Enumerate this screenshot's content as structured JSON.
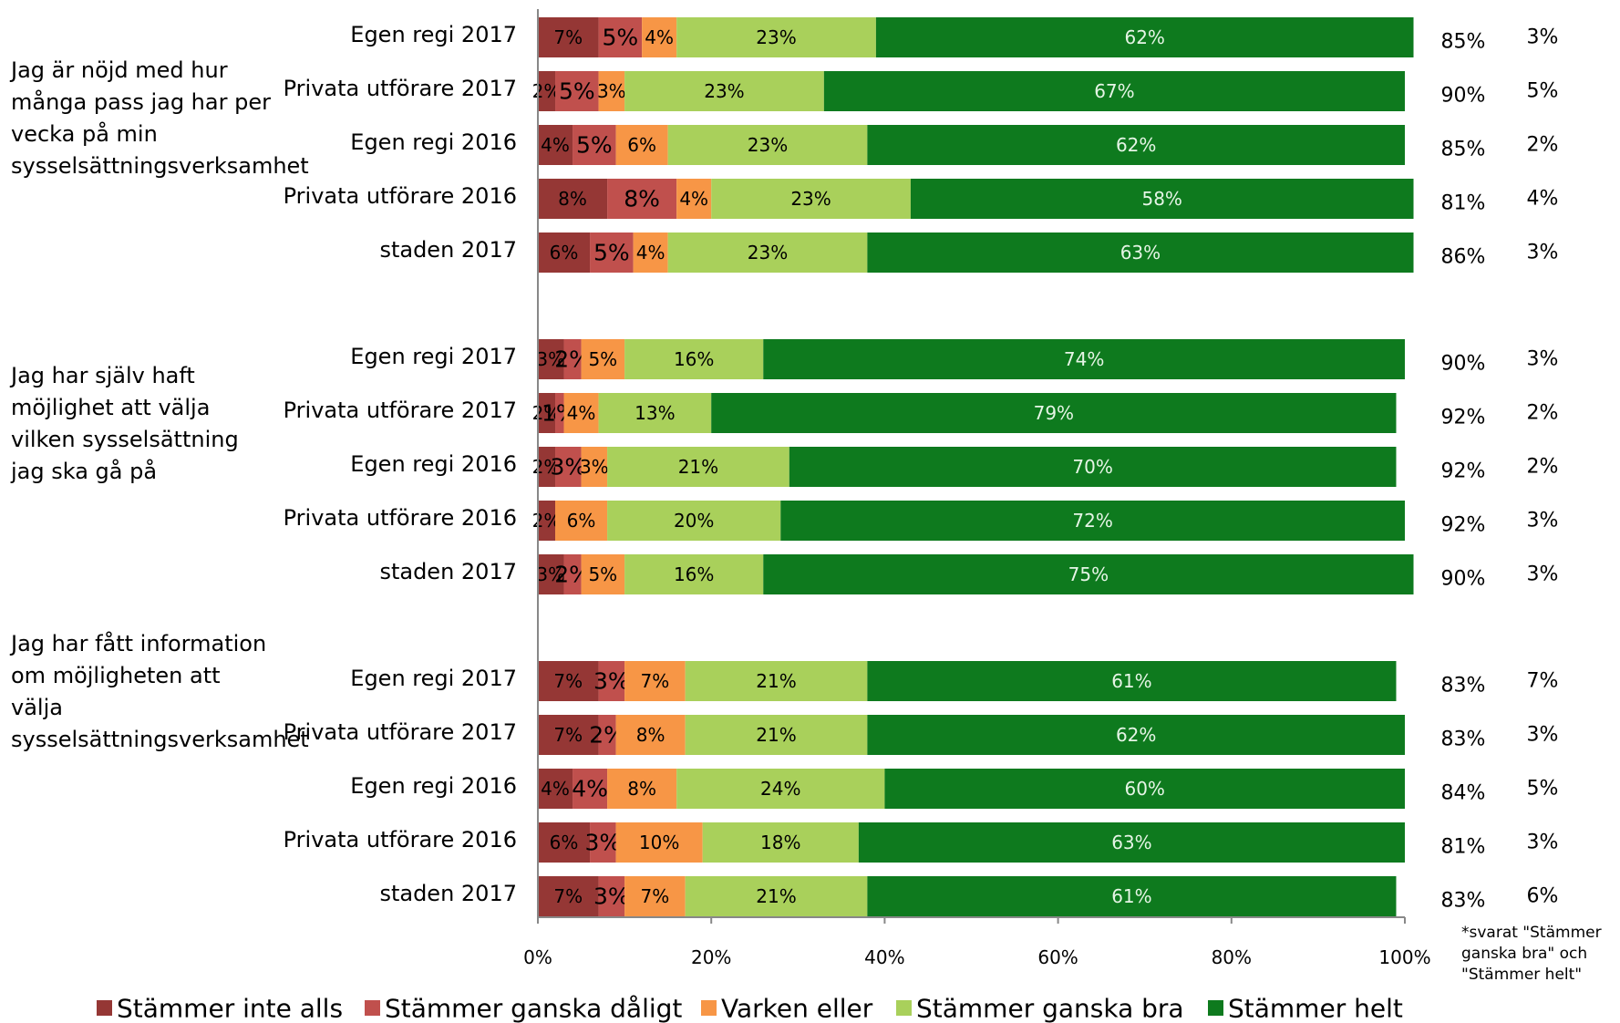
{
  "chart_data": {
    "type": "bar",
    "orientation": "horizontal",
    "stacked": true,
    "xlim": [
      0,
      100
    ],
    "x_ticks": [
      "0%",
      "20%",
      "40%",
      "60%",
      "80%",
      "100%"
    ],
    "legend_position": "bottom",
    "series": [
      {
        "name": "Stämmer inte alls",
        "color": "#953735"
      },
      {
        "name": "Stämmer ganska dåligt",
        "color": "#c0504d"
      },
      {
        "name": "Varken eller",
        "color": "#f79646"
      },
      {
        "name": "Stämmer ganska bra",
        "color": "#a9d05b"
      },
      {
        "name": "Stämmer helt",
        "color": "#0e7a1e"
      }
    ],
    "groups": [
      {
        "question": "Jag är nöjd med hur många pass jag har per vecka på min sysselsättningsverksamhet",
        "rows": [
          {
            "label": "Egen regi 2017",
            "values": [
              7,
              5,
              4,
              23,
              62
            ],
            "positive": "85%",
            "other": "3%"
          },
          {
            "label": "Privata utförare 2017",
            "values": [
              2,
              5,
              3,
              23,
              67
            ],
            "positive": "90%",
            "other": "5%"
          },
          {
            "label": "Egen regi 2016",
            "values": [
              4,
              5,
              6,
              23,
              62
            ],
            "positive": "85%",
            "other": "2%"
          },
          {
            "label": "Privata utförare 2016",
            "values": [
              8,
              8,
              4,
              23,
              58
            ],
            "positive": "81%",
            "other": "4%"
          },
          {
            "label": "staden 2017",
            "values": [
              6,
              5,
              4,
              23,
              63
            ],
            "positive": "86%",
            "other": "3%"
          }
        ]
      },
      {
        "question": "Jag har själv haft möjlighet att välja vilken sysselsättning jag ska gå på",
        "rows": [
          {
            "label": "Egen regi 2017",
            "values": [
              3,
              2,
              5,
              16,
              74
            ],
            "positive": "90%",
            "other": "3%"
          },
          {
            "label": "Privata utförare 2017",
            "values": [
              2,
              1,
              4,
              13,
              79
            ],
            "positive": "92%",
            "other": "2%"
          },
          {
            "label": "Egen regi 2016",
            "values": [
              2,
              3,
              3,
              21,
              70
            ],
            "positive": "92%",
            "other": "2%"
          },
          {
            "label": "Privata utförare 2016",
            "values": [
              2,
              0,
              6,
              20,
              72
            ],
            "positive": "92%",
            "other": "3%"
          },
          {
            "label": "staden 2017",
            "values": [
              3,
              2,
              5,
              16,
              75
            ],
            "positive": "90%",
            "other": "3%"
          }
        ]
      },
      {
        "question": "Jag har fått information om möjligheten att välja sysselsättningsverksamhet",
        "rows": [
          {
            "label": "Egen regi 2017",
            "values": [
              7,
              3,
              7,
              21,
              61
            ],
            "positive": "83%",
            "other": "7%"
          },
          {
            "label": "Privata utförare 2017",
            "values": [
              7,
              2,
              8,
              21,
              62
            ],
            "positive": "83%",
            "other": "3%"
          },
          {
            "label": "Egen regi 2016",
            "values": [
              4,
              4,
              8,
              24,
              60
            ],
            "positive": "84%",
            "other": "5%"
          },
          {
            "label": "Privata utförare 2016",
            "values": [
              6,
              3,
              10,
              18,
              63
            ],
            "positive": "81%",
            "other": "3%"
          },
          {
            "label": "staden 2017",
            "values": [
              7,
              3,
              7,
              21,
              61
            ],
            "positive": "83%",
            "other": "6%"
          }
        ]
      }
    ],
    "footnote": "*svarat \"Stämmer ganska bra\" och \"Stämmer helt\""
  }
}
